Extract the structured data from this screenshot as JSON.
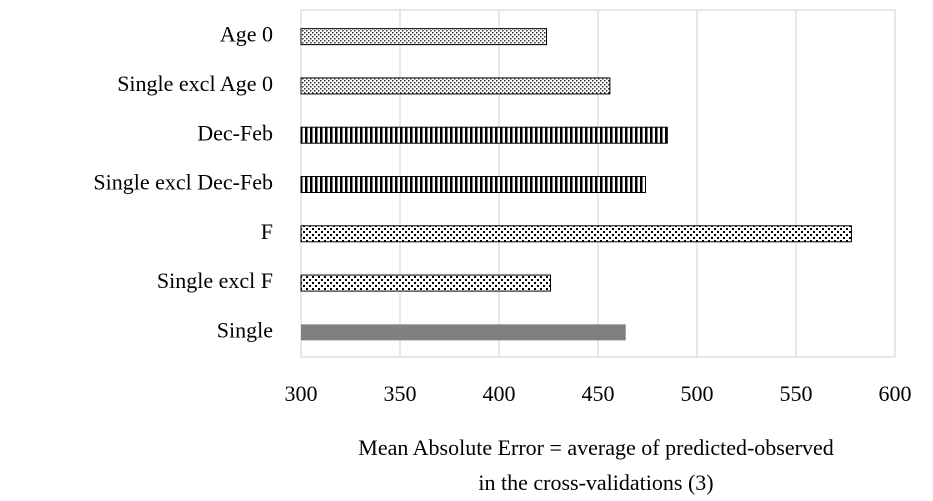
{
  "chart_data": {
    "type": "bar",
    "orientation": "horizontal",
    "categories": [
      "Age 0",
      "Single excl Age 0",
      "Dec-Feb",
      "Single excl Dec-Feb",
      "F",
      "Single excl F",
      "Single"
    ],
    "values": [
      424,
      456,
      485,
      474,
      578,
      426,
      464
    ],
    "bar_styles": [
      "dots",
      "dots",
      "stripes",
      "stripes",
      "checker",
      "checker",
      "solid"
    ],
    "color": "#808080",
    "xlim": [
      300,
      600
    ],
    "xticks": [
      300,
      350,
      400,
      450,
      500,
      550,
      600
    ],
    "grid": true,
    "x_label": [
      "Mean Absolute Error = average of predicted-observed",
      "in the cross-validations (3)"
    ]
  }
}
